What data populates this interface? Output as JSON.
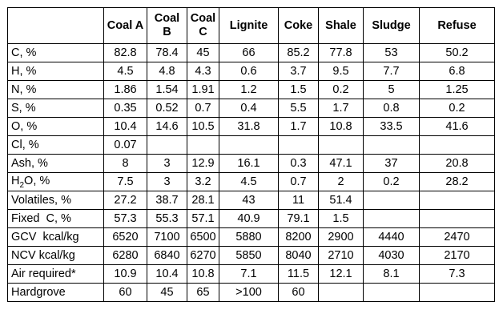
{
  "table": {
    "headers": [
      "",
      "Coal A",
      "Coal B",
      "Coal C",
      "Lignite",
      "Coke",
      "Shale",
      "Sludge",
      "Refuse"
    ],
    "rows": [
      {
        "label": "C, %",
        "values": [
          "82.8",
          "78.4",
          "45",
          "66",
          "85.2",
          "77.8",
          "53",
          "50.2"
        ]
      },
      {
        "label": "H, %",
        "values": [
          "4.5",
          "4.8",
          "4.3",
          "0.6",
          "3.7",
          "9.5",
          "7.7",
          "6.8"
        ]
      },
      {
        "label": "N, %",
        "values": [
          "1.86",
          "1.54",
          "1.91",
          "1.2",
          "1.5",
          "0.2",
          "5",
          "1.25"
        ]
      },
      {
        "label": "S, %",
        "values": [
          "0.35",
          "0.52",
          "0.7",
          "0.4",
          "5.5",
          "1.7",
          "0.8",
          "0.2"
        ]
      },
      {
        "label": "O, %",
        "values": [
          "10.4",
          "14.6",
          "10.5",
          "31.8",
          "1.7",
          "10.8",
          "33.5",
          "41.6"
        ]
      },
      {
        "label": "Cl, %",
        "values": [
          "0.07",
          "",
          "",
          "",
          "",
          "",
          "",
          ""
        ]
      },
      {
        "label": "Ash, %",
        "values": [
          "8",
          "3",
          "12.9",
          "16.1",
          "0.3",
          "47.1",
          "37",
          "20.8"
        ]
      },
      {
        "label_prefix": "H",
        "label_sub": "2",
        "label_suffix": "O, %",
        "values": [
          "7.5",
          "3",
          "3.2",
          "4.5",
          "0.7",
          "2",
          "0.2",
          "28.2"
        ]
      },
      {
        "label": "Volatiles, %",
        "values": [
          "27.2",
          "38.7",
          "28.1",
          "43",
          "11",
          "51.4",
          "",
          ""
        ]
      },
      {
        "label": "Fixed  C, %",
        "values": [
          "57.3",
          "55.3",
          "57.1",
          "40.9",
          "79.1",
          "1.5",
          "",
          ""
        ]
      },
      {
        "label": "GCV  kcal/kg",
        "values": [
          "6520",
          "7100",
          "6500",
          "5880",
          "8200",
          "2900",
          "4440",
          "2470"
        ]
      },
      {
        "label": "NCV kcal/kg",
        "values": [
          "6280",
          "6840",
          "6270",
          "5850",
          "8040",
          "2710",
          "4030",
          "2170"
        ]
      },
      {
        "label": "Air required*",
        "values": [
          "10.9",
          "10.4",
          "10.8",
          "7.1",
          "11.5",
          "12.1",
          "8.1",
          "7.3"
        ]
      },
      {
        "label": "Hardgrove",
        "values": [
          "60",
          "45",
          "65",
          ">100",
          "60",
          "",
          "",
          ""
        ]
      }
    ]
  }
}
